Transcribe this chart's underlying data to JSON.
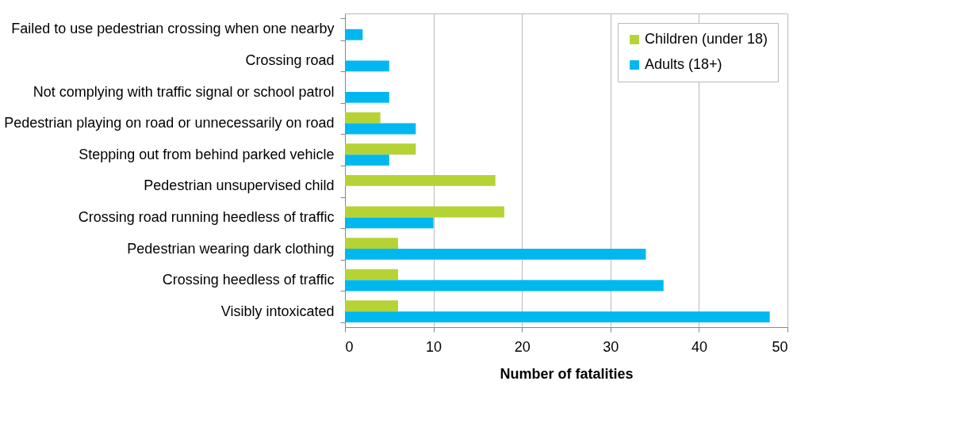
{
  "chart_data": {
    "type": "bar",
    "orientation": "horizontal",
    "xlabel": "Number of fatalities",
    "categories": [
      "Failed to use pedestrian crossing when one nearby",
      "Crossing road",
      "Not complying with traffic signal or school patrol",
      "Pedestrian playing on road or unnecessarily on road",
      "Stepping out from behind parked vehicle",
      "Pedestrian unsupervised child",
      "Crossing road running heedless of traffic",
      "Pedestrian wearing dark clothing",
      "Crossing heedless of traffic",
      "Visibly intoxicated"
    ],
    "series": [
      {
        "name": "Children (under 18)",
        "color": "#b5d334",
        "values": [
          null,
          null,
          null,
          4,
          8,
          17,
          18,
          6,
          6,
          6
        ]
      },
      {
        "name": "Adults (18+)",
        "color": "#00b8f0",
        "values": [
          2,
          5,
          5,
          8,
          5,
          null,
          10,
          34,
          36,
          48
        ]
      }
    ],
    "xlim": [
      0,
      50
    ],
    "xticks": [
      0,
      10,
      20,
      30,
      40,
      50
    ],
    "grid": "x",
    "legend": "top right"
  }
}
